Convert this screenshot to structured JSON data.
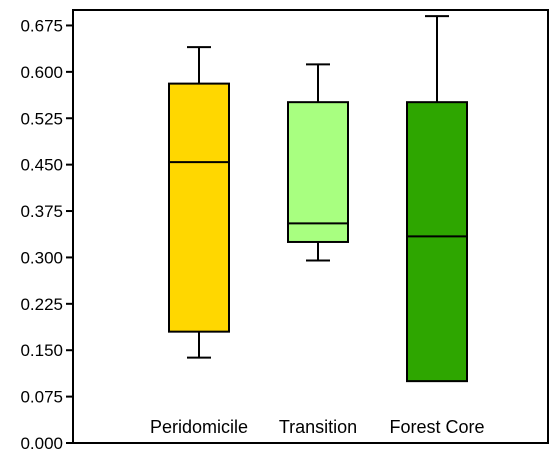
{
  "chart_data": {
    "type": "box",
    "title": "",
    "xlabel": "",
    "ylabel": "",
    "ylim": [
      0,
      0.7
    ],
    "yticks": [
      "0.000",
      "0.075",
      "0.150",
      "0.225",
      "0.300",
      "0.375",
      "0.450",
      "0.525",
      "0.600",
      "0.675"
    ],
    "categories": [
      "Peridomicile",
      "Transition",
      "Forest Core"
    ],
    "boxes": [
      {
        "category": "Peridomicile",
        "whisker_low": 0.138,
        "q1": 0.18,
        "median": 0.454,
        "q3": 0.581,
        "whisker_high": 0.64,
        "color": "#FFD700"
      },
      {
        "category": "Transition",
        "whisker_low": 0.295,
        "q1": 0.325,
        "median": 0.355,
        "q3": 0.551,
        "whisker_high": 0.612,
        "color": "#A8FF80"
      },
      {
        "category": "Forest Core",
        "whisker_low": 0.1,
        "q1": 0.1,
        "median": 0.334,
        "q3": 0.551,
        "whisker_high": 0.69,
        "color": "#2EA600"
      }
    ],
    "grid": false,
    "legend": "none"
  }
}
